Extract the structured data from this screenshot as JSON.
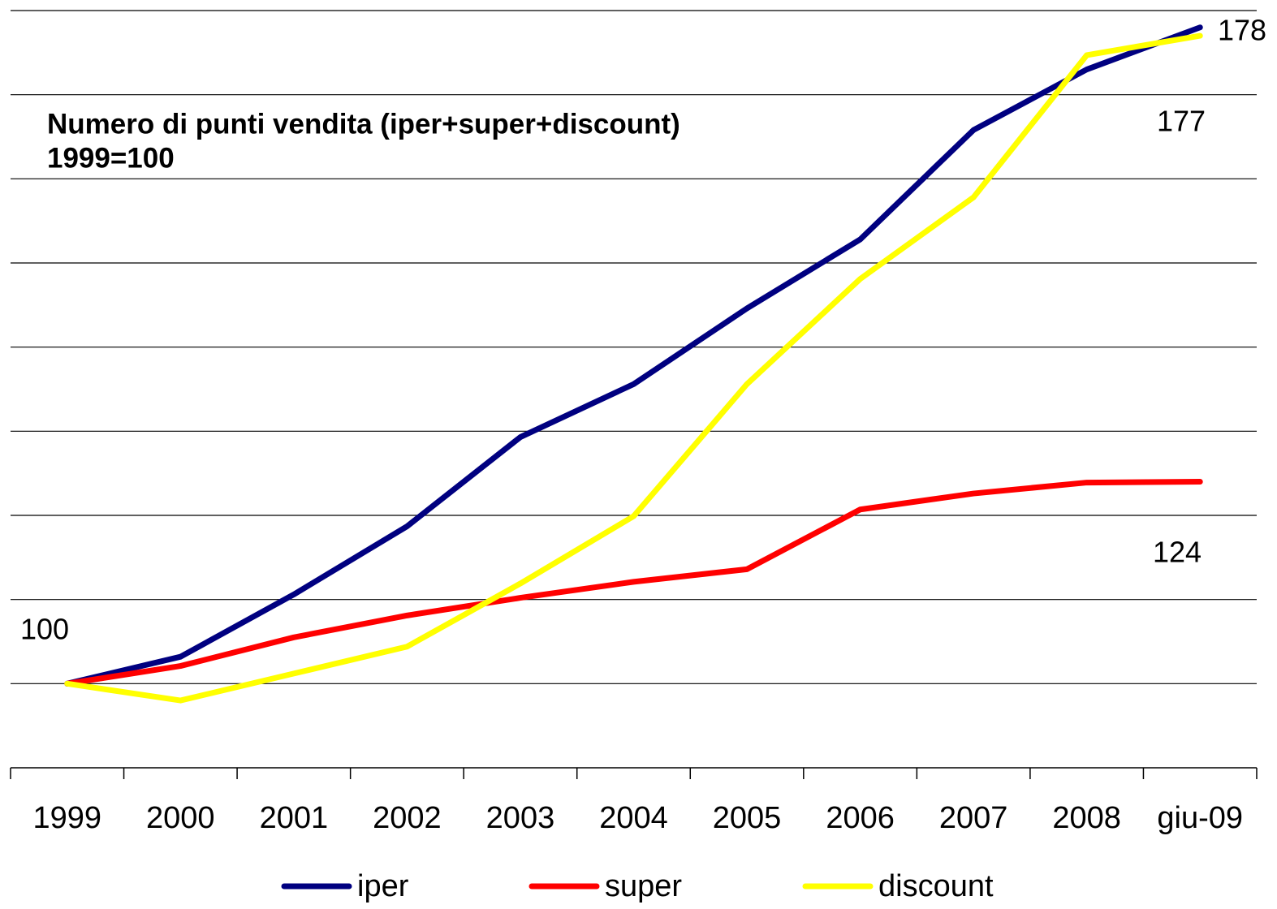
{
  "chart_data": {
    "type": "line",
    "title": "Numero di punti vendita (iper+super+discount)",
    "subtitle": "1999=100",
    "categories": [
      "1999",
      "2000",
      "2001",
      "2002",
      "2003",
      "2004",
      "2005",
      "2006",
      "2007",
      "2008",
      "giu-09"
    ],
    "series": [
      {
        "name": "iper",
        "color": "#000080",
        "values": [
          100,
          103.2,
          110.6,
          118.7,
          129.3,
          135.6,
          144.6,
          152.8,
          165.8,
          173,
          178
        ]
      },
      {
        "name": "super",
        "color": "#ff0000",
        "values": [
          100,
          102.1,
          105.5,
          108.1,
          110.2,
          112.1,
          113.6,
          120.7,
          122.6,
          123.9,
          124
        ]
      },
      {
        "name": "discount",
        "color": "#ffff00",
        "values": [
          100,
          98,
          101.2,
          104.4,
          111.9,
          119.9,
          135.6,
          148.1,
          157.8,
          174.7,
          177
        ]
      }
    ],
    "annotations": [
      "100",
      "178",
      "177",
      "124"
    ],
    "ylim": [
      90,
      180
    ],
    "yticks": [
      100,
      110,
      120,
      130,
      140,
      150,
      160,
      170,
      180
    ],
    "grid": true,
    "legend": "bottom"
  }
}
